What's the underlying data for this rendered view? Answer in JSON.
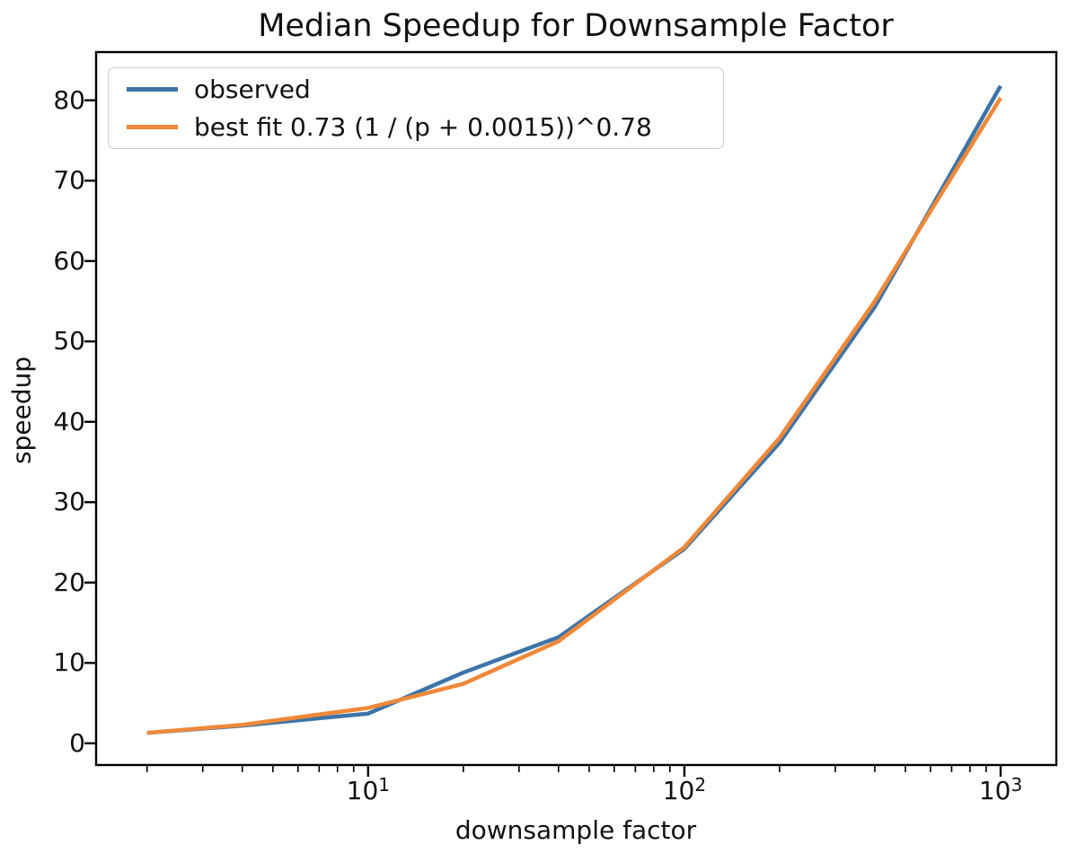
{
  "chart": {
    "title": "Median Speedup for Downsample Factor",
    "xlabel": "downsample factor",
    "ylabel": "speedup"
  },
  "chart_data": {
    "type": "line",
    "title": "Median Speedup for Downsample Factor",
    "xlabel": "downsample factor",
    "ylabel": "speedup",
    "x_scale": "log",
    "grid": false,
    "legend_position": "upper left",
    "x": [
      2,
      4,
      10,
      20,
      40,
      100,
      200,
      400,
      1000
    ],
    "series": [
      {
        "name": "observed",
        "color": "#3c74a9",
        "values": [
          1.3,
          2.2,
          3.7,
          8.8,
          13.2,
          24.2,
          37.4,
          54.3,
          81.8
        ]
      },
      {
        "name": "best fit 0.73 (1 / (p + 0.0015))^0.78",
        "color": "#ef8838",
        "values": [
          1.3,
          2.3,
          4.4,
          7.4,
          12.7,
          24.4,
          38.0,
          55.0,
          80.3
        ]
      }
    ],
    "xlim": [
      1.38,
      1500
    ],
    "ylim": [
      -2.7,
      86
    ],
    "y_ticks": [
      0,
      10,
      20,
      30,
      40,
      50,
      60,
      70,
      80
    ],
    "x_major_ticks": [
      {
        "value": 10,
        "base": "10",
        "exponent": "1"
      },
      {
        "value": 100,
        "base": "10",
        "exponent": "2"
      },
      {
        "value": 1000,
        "base": "10",
        "exponent": "3"
      }
    ],
    "x_minor_ticks": [
      2,
      3,
      4,
      5,
      6,
      7,
      8,
      9,
      20,
      30,
      40,
      50,
      60,
      70,
      80,
      90,
      200,
      300,
      400,
      500,
      600,
      700,
      800,
      900
    ],
    "axis_color": "#000000",
    "background": "#ffffff"
  }
}
